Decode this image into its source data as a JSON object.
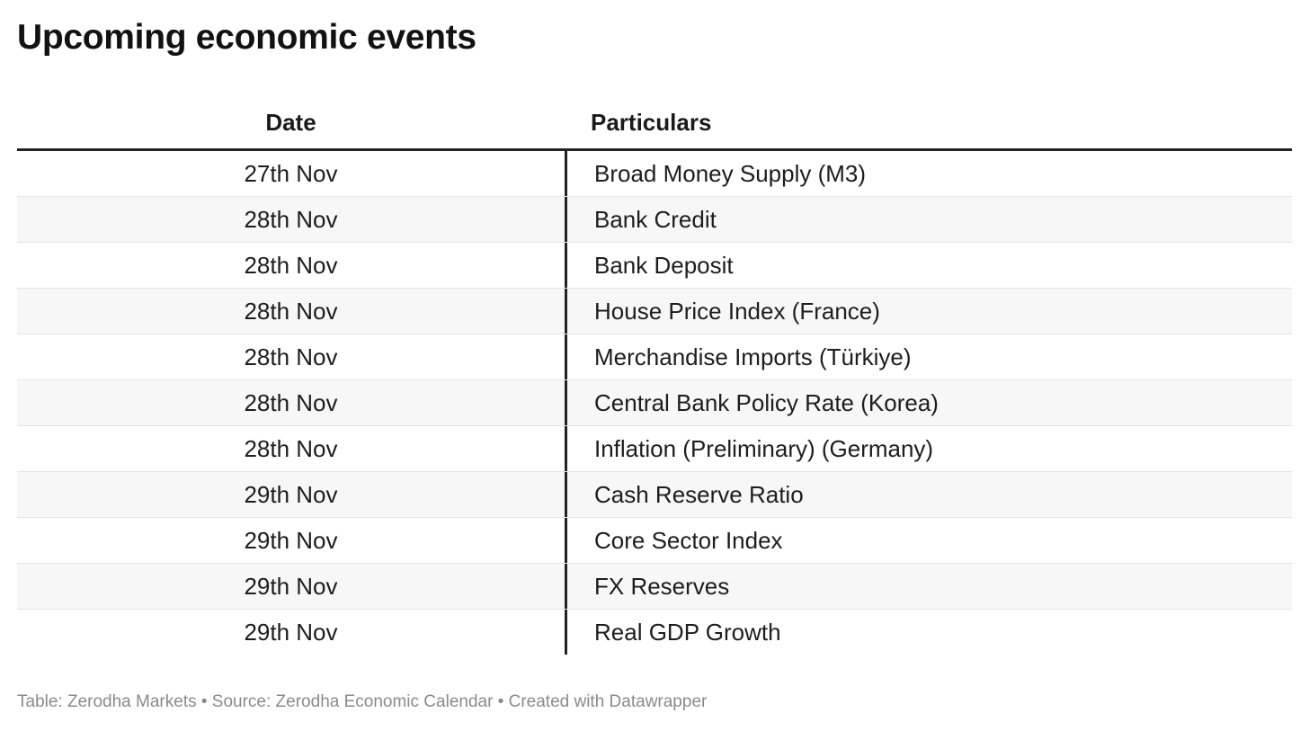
{
  "chart_data": {
    "type": "table",
    "title": "Upcoming economic events",
    "columns": [
      "Date",
      "Particulars"
    ],
    "rows": [
      {
        "date": "27th Nov",
        "particulars": "Broad Money Supply (M3)"
      },
      {
        "date": "28th Nov",
        "particulars": "Bank Credit"
      },
      {
        "date": "28th Nov",
        "particulars": "Bank Deposit"
      },
      {
        "date": "28th Nov",
        "particulars": "House Price Index (France)"
      },
      {
        "date": "28th Nov",
        "particulars": "Merchandise Imports (Türkiye)"
      },
      {
        "date": "28th Nov",
        "particulars": "Central Bank Policy Rate (Korea)"
      },
      {
        "date": "28th Nov",
        "particulars": "Inflation (Preliminary) (Germany)"
      },
      {
        "date": "29th Nov",
        "particulars": "Cash Reserve Ratio"
      },
      {
        "date": "29th Nov",
        "particulars": "Core Sector Index"
      },
      {
        "date": "29th Nov",
        "particulars": "FX Reserves"
      },
      {
        "date": "29th Nov",
        "particulars": "Real GDP Growth"
      }
    ],
    "footer": "Table: Zerodha Markets • Source: Zerodha Economic Calendar • Created with Datawrapper"
  }
}
